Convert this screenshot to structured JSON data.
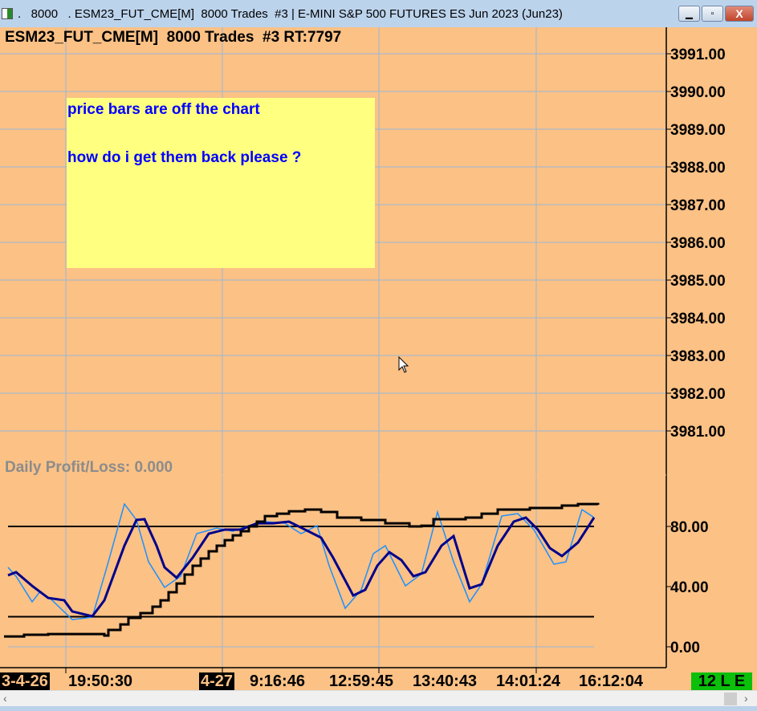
{
  "window": {
    "title": ".   8000   . ESM23_FUT_CME[M]  8000 Trades  #3 | E-MINI S&P 500 FUTURES ES Jun 2023 (Jun23)",
    "minimize": "▁",
    "maximize": "▫",
    "close": "X"
  },
  "chart": {
    "header": "ESM23_FUT_CME[M]  8000 Trades  #3 RT:7797",
    "note": {
      "line1": "price bars are off the chart",
      "line2": "how do i get them back please ?"
    },
    "profit_loss": "Daily Profit/Loss: 0.000",
    "status_badge": "12 L E",
    "colors": {
      "background": "#fbc185",
      "grid": "#9ab8d6",
      "fast_line": "#1e90ff",
      "slow_line": "#00008b",
      "step_line": "#000000",
      "note": "#ffff80"
    }
  },
  "chart_data": [
    {
      "type": "line",
      "panel": "price",
      "y_ticks": [
        "3991.00",
        "3990.00",
        "3989.00",
        "3988.00",
        "3987.00",
        "3986.00",
        "3985.00",
        "3984.00",
        "3983.00",
        "3982.00",
        "3981.00"
      ],
      "ylim": [
        3980.4,
        3992.2
      ],
      "series": []
    },
    {
      "type": "line",
      "panel": "oscillator",
      "y_ticks": [
        "80.00",
        "40.00",
        "0.00"
      ],
      "ylim": [
        -14,
        100
      ],
      "hlines": [
        80,
        20
      ],
      "x_ticks": [
        "3-4-26",
        "19:50:30",
        "4-27",
        "9:16:46",
        "12:59:45",
        "13:40:43",
        "14:01:24",
        "16:12:04"
      ],
      "series": [
        {
          "style": "fast",
          "x": [
            2,
            4,
            8,
            10,
            13,
            18,
            23,
            27,
            31,
            34,
            37,
            41,
            45,
            49,
            54,
            58,
            62,
            66,
            71,
            75,
            79,
            82,
            86,
            90,
            93,
            96,
            101,
            105,
            109,
            113,
            117,
            120,
            125,
            129,
            133,
            138,
            141,
            145,
            148
          ],
          "y": [
            52.8,
            46.9,
            29.9,
            36.8,
            30.9,
            18.1,
            19.7,
            56.5,
            94.9,
            84.3,
            56.5,
            39.5,
            46.9,
            75.2,
            78.9,
            76.8,
            80.5,
            83.2,
            82.1,
            75.2,
            80.5,
            53.9,
            25.6,
            37.9,
            61.9,
            67.2,
            40.5,
            48.5,
            89.6,
            56.5,
            29.9,
            41.6,
            86.9,
            88.5,
            77.9,
            54.9,
            56.5,
            91.2,
            85.9
          ]
        },
        {
          "style": "slow",
          "x": [
            2,
            4,
            8,
            12,
            16,
            18,
            23,
            26,
            31,
            34,
            36,
            39,
            41,
            44,
            48,
            52,
            56,
            60,
            64,
            68,
            72,
            76,
            80,
            83,
            88,
            91,
            94,
            97,
            100,
            103,
            106,
            110,
            113,
            117,
            120,
            124,
            128,
            131,
            134,
            137,
            140,
            144,
            148
          ],
          "y": [
            47.5,
            49.6,
            40.5,
            32.5,
            30.9,
            23.5,
            20.3,
            30.9,
            67.2,
            84.3,
            84.8,
            67.2,
            52.8,
            45.9,
            59.2,
            75.2,
            77.9,
            77.9,
            82.1,
            82.1,
            83.2,
            77.9,
            72.5,
            59.2,
            34.1,
            37.9,
            53.9,
            62.9,
            57.6,
            46.9,
            49.6,
            67.2,
            73.6,
            38.9,
            41.6,
            67.2,
            83.2,
            85.9,
            77.9,
            65.6,
            60.3,
            69.3,
            85.9
          ]
        },
        {
          "style": "step",
          "x": [
            1,
            6,
            12,
            22,
            26,
            27,
            30,
            32,
            35,
            38,
            40,
            42,
            44,
            46,
            48,
            50,
            52,
            54,
            56,
            58,
            60,
            62,
            64,
            66,
            69,
            72,
            76,
            80,
            84,
            90,
            96,
            102,
            105,
            108,
            116,
            120,
            124,
            132,
            140,
            144,
            149
          ],
          "y": [
            6.9,
            8,
            8.5,
            8.5,
            7.5,
            11.2,
            14.9,
            19.2,
            22.4,
            26.7,
            30.9,
            36.3,
            42.1,
            48,
            53.9,
            58.7,
            63.5,
            67.2,
            70.9,
            74.1,
            76.8,
            80,
            83.2,
            86.9,
            88.5,
            90.1,
            91.2,
            89.6,
            85.9,
            84.3,
            82.1,
            80,
            80.5,
            84.8,
            85.9,
            88.5,
            91.2,
            92.3,
            93.9,
            94.9,
            94.4
          ]
        }
      ]
    }
  ]
}
